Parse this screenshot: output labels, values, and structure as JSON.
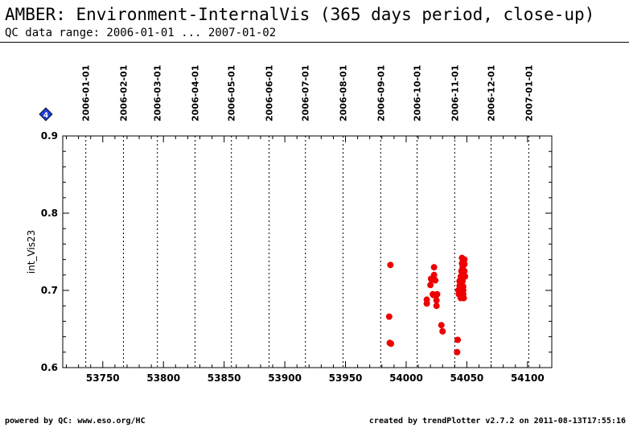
{
  "header": {
    "title": "AMBER: Environment-InternalVis (365 days period, close-up)",
    "subtitle": "QC data range: 2006-01-01 ... 2007-01-02"
  },
  "footer": {
    "left": "powered by QC: www.eso.org/HC",
    "right": "created by trendPlotter v2.7.2 on 2011-08-13T17:55:16"
  },
  "badge": {
    "label": "4",
    "color": "#1a3fd6"
  },
  "colors": {
    "points": "#ee0000",
    "axis": "#000000"
  },
  "chart_data": {
    "type": "scatter",
    "title": "",
    "xlabel": "",
    "ylabel": "int_Vis23",
    "xlim": [
      53717,
      54120
    ],
    "ylim": [
      0.6,
      0.9
    ],
    "x_ticks": [
      53750,
      53800,
      53850,
      53900,
      53950,
      54000,
      54050,
      54100
    ],
    "y_ticks": [
      0.6,
      0.7,
      0.8,
      0.9
    ],
    "y_tick_labels": [
      "0.6",
      "0.7",
      "0.8",
      "0.9"
    ],
    "grid": "vertical dotted lines at month starts",
    "date_ticks": [
      {
        "x": 53736,
        "label": "2006-01-01"
      },
      {
        "x": 53767,
        "label": "2006-02-01"
      },
      {
        "x": 53795,
        "label": "2006-03-01"
      },
      {
        "x": 53826,
        "label": "2006-04-01"
      },
      {
        "x": 53856,
        "label": "2006-05-01"
      },
      {
        "x": 53887,
        "label": "2006-06-01"
      },
      {
        "x": 53917,
        "label": "2006-07-01"
      },
      {
        "x": 53948,
        "label": "2006-08-01"
      },
      {
        "x": 53979,
        "label": "2006-09-01"
      },
      {
        "x": 54009,
        "label": "2006-10-01"
      },
      {
        "x": 54040,
        "label": "2006-11-01"
      },
      {
        "x": 54070,
        "label": "2006-12-01"
      },
      {
        "x": 54101,
        "label": "2007-01-01"
      }
    ],
    "series": [
      {
        "points": [
          [
            53986,
            0.666
          ],
          [
            53986.5,
            0.632
          ],
          [
            53987,
            0.733
          ],
          [
            53987.5,
            0.631
          ],
          [
            54017,
            0.683
          ],
          [
            54017,
            0.688
          ],
          [
            54020,
            0.707
          ],
          [
            54020.5,
            0.715
          ],
          [
            54021,
            0.714
          ],
          [
            54022,
            0.695
          ],
          [
            54022.5,
            0.694
          ],
          [
            54023,
            0.73
          ],
          [
            54023,
            0.72
          ],
          [
            54024,
            0.713
          ],
          [
            54024.5,
            0.693
          ],
          [
            54025,
            0.68
          ],
          [
            54025,
            0.687
          ],
          [
            54025.5,
            0.695
          ],
          [
            54029,
            0.655
          ],
          [
            54030,
            0.647
          ],
          [
            54042,
            0.62
          ],
          [
            54042.5,
            0.636
          ],
          [
            54043,
            0.7
          ],
          [
            54043.5,
            0.695
          ],
          [
            54044,
            0.706
          ],
          [
            54044,
            0.712
          ],
          [
            54045,
            0.718
          ],
          [
            54045,
            0.69
          ],
          [
            54045.5,
            0.725
          ],
          [
            54046,
            0.742
          ],
          [
            54046,
            0.735
          ],
          [
            54046.5,
            0.73
          ],
          [
            54046.5,
            0.712
          ],
          [
            54047,
            0.705
          ],
          [
            54047,
            0.7
          ],
          [
            54047,
            0.695
          ],
          [
            54047.5,
            0.69
          ],
          [
            54048,
            0.74
          ],
          [
            54048,
            0.734
          ],
          [
            54048,
            0.725
          ],
          [
            54048.5,
            0.718
          ]
        ]
      }
    ]
  }
}
